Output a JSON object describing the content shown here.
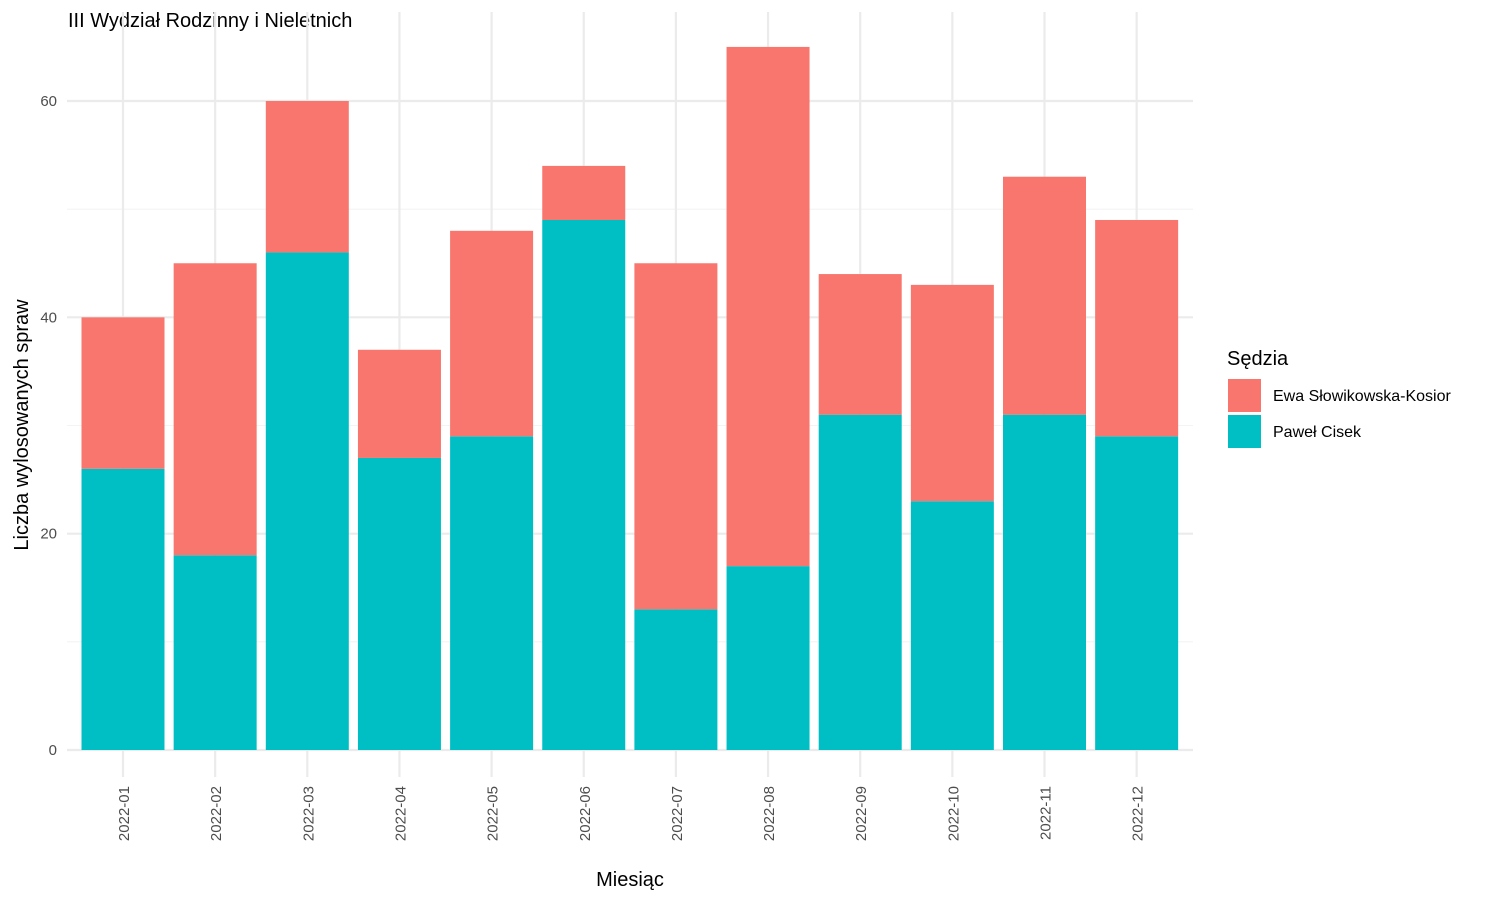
{
  "chart_data": {
    "type": "bar",
    "stacked": true,
    "title": "III Wydział Rodzinny i Nieletnich",
    "xlabel": "Miesiąc",
    "ylabel": "Liczba wylosowanych spraw",
    "categories": [
      "2022-01",
      "2022-02",
      "2022-03",
      "2022-04",
      "2022-05",
      "2022-06",
      "2022-07",
      "2022-08",
      "2022-09",
      "2022-10",
      "2022-11",
      "2022-12"
    ],
    "series": [
      {
        "name": "Paweł Cisek",
        "color": "#00BFC4",
        "values": [
          26,
          18,
          46,
          27,
          29,
          49,
          13,
          17,
          31,
          23,
          31,
          29
        ]
      },
      {
        "name": "Ewa Słowikowska-Kosior",
        "color": "#F8766D",
        "values": [
          14,
          27,
          14,
          10,
          19,
          5,
          32,
          48,
          13,
          20,
          22,
          20
        ]
      }
    ],
    "ylim": [
      0,
      65
    ],
    "yticks": [
      0,
      20,
      40,
      60
    ],
    "legend": {
      "title": "Sędzia",
      "placement": "right",
      "order": [
        "Ewa Słowikowska-Kosior",
        "Paweł Cisek"
      ]
    },
    "grid": true
  }
}
